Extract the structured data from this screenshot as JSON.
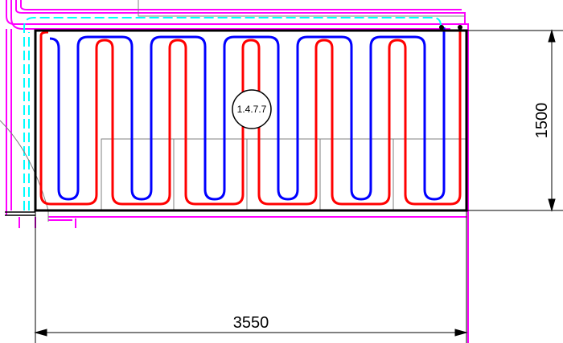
{
  "plan": {
    "room_label": "1.4.7.7",
    "dimensions": {
      "width": "3550",
      "height": "1500"
    },
    "loop": {
      "supply_color": "#ff0000",
      "return_color": "#0000ff",
      "u_turns": 6
    },
    "colors": {
      "outline": "#000000",
      "wall": "#ff00ff",
      "guide": "#00ffff",
      "grid": "#808080"
    }
  }
}
